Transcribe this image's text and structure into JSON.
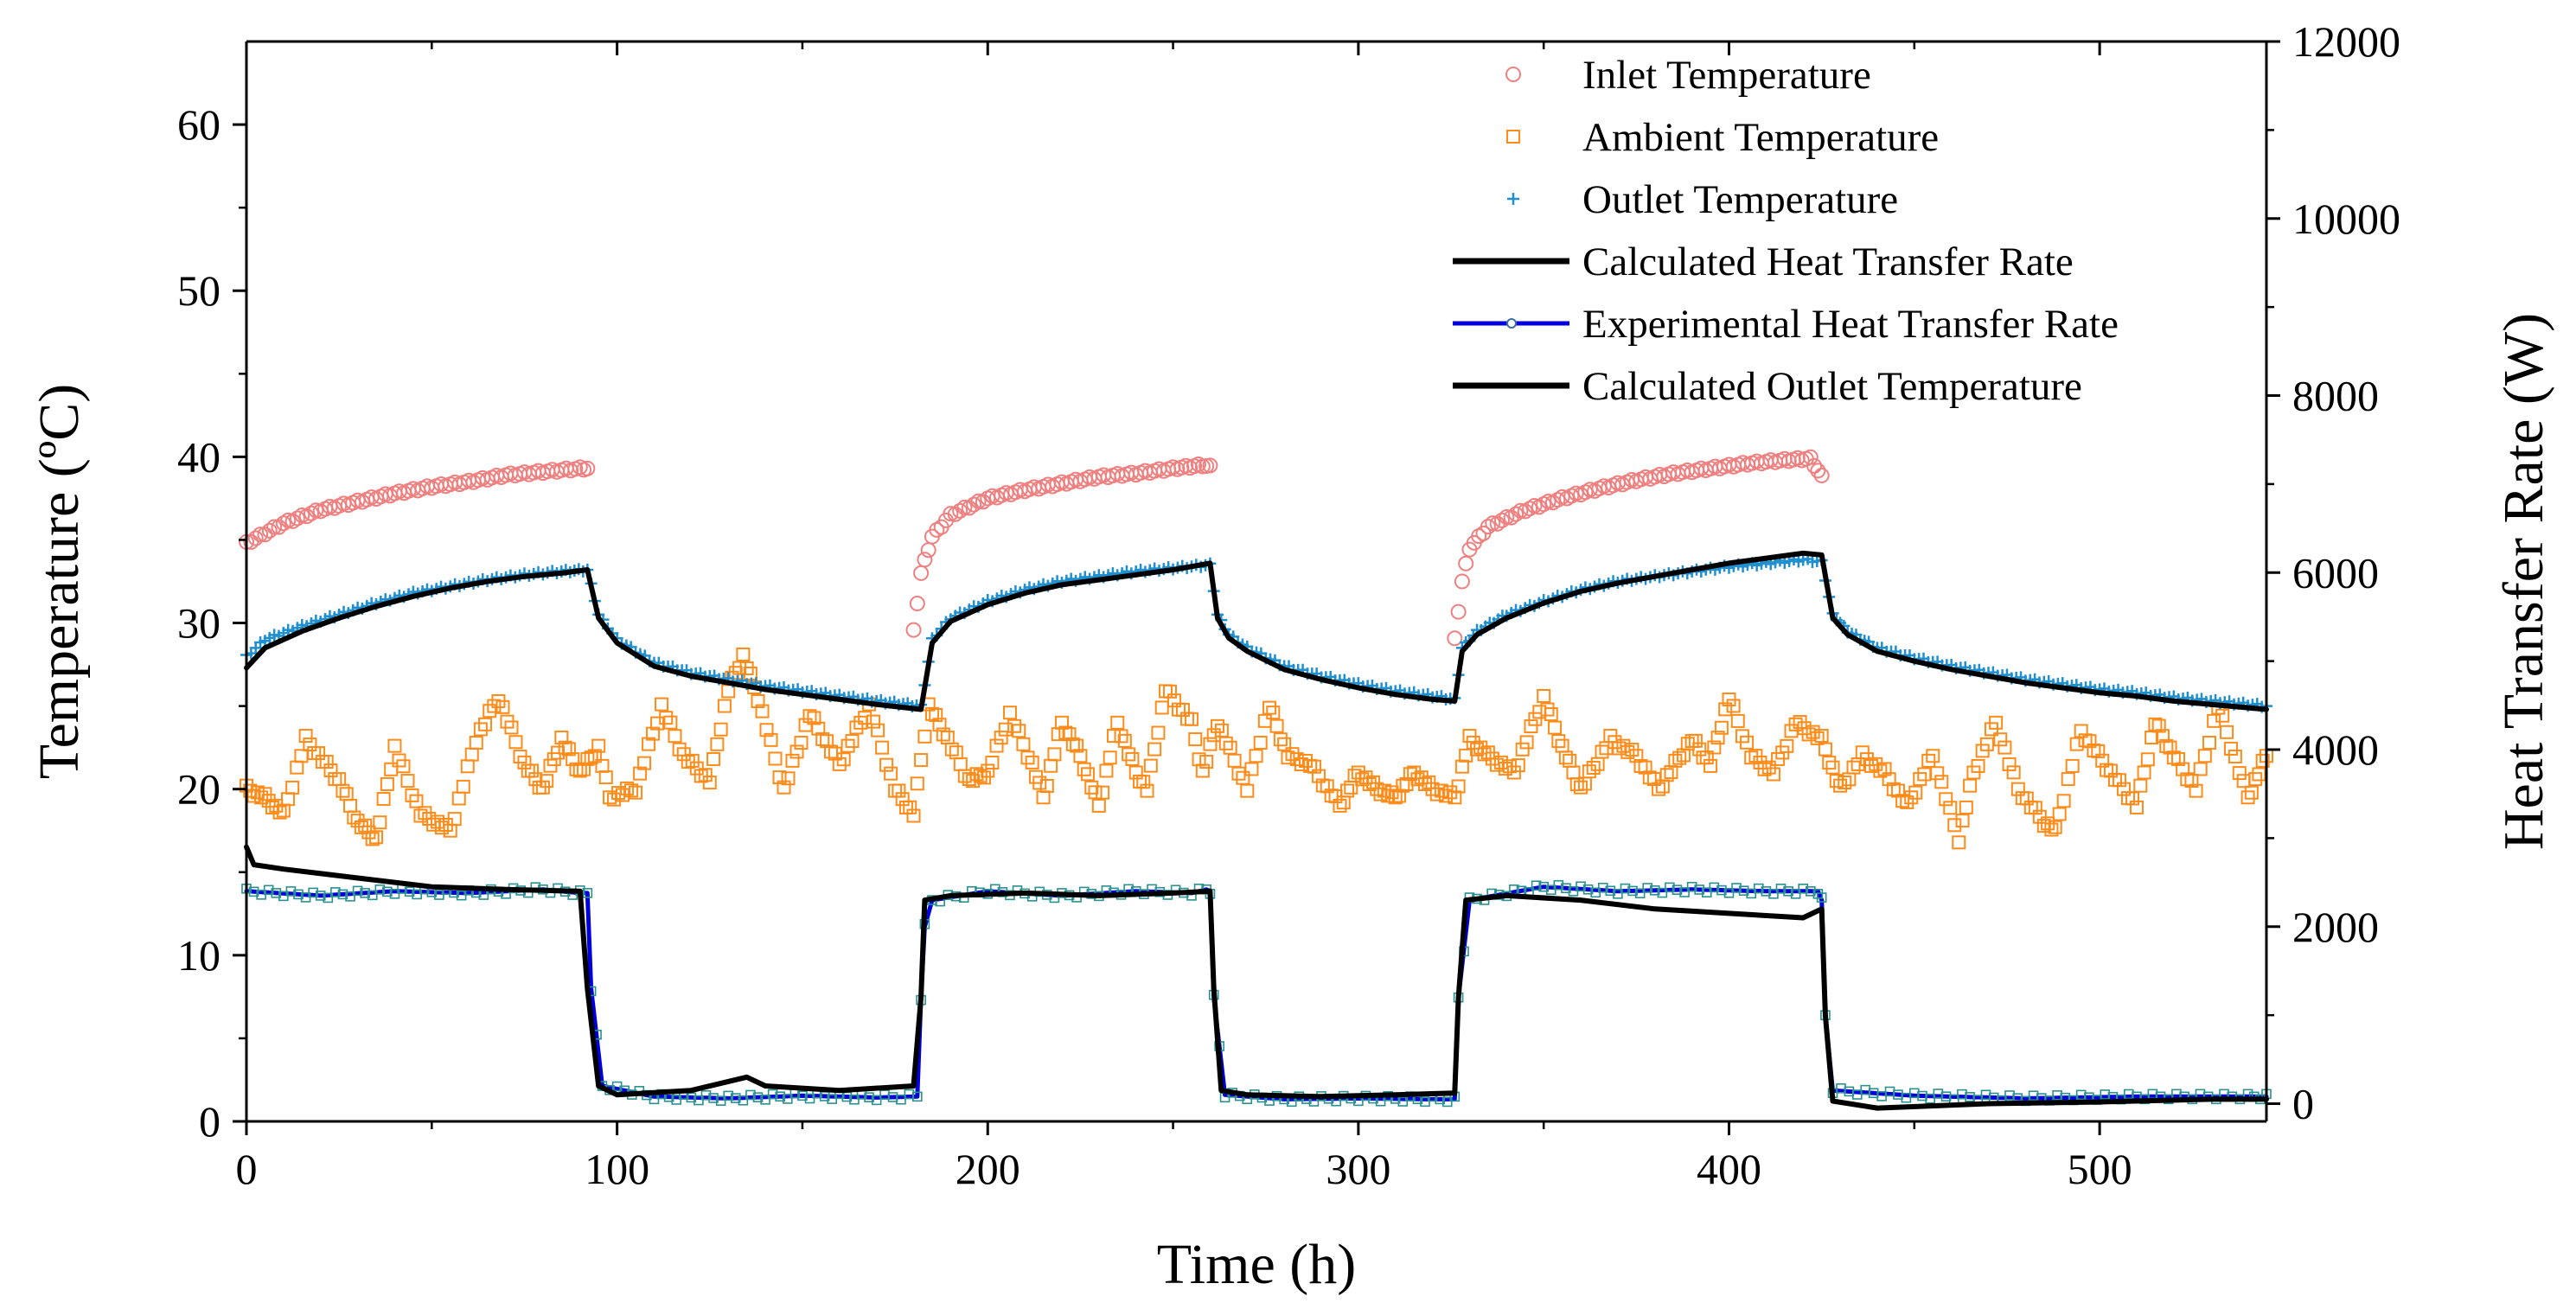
{
  "chart_data": {
    "type": "line",
    "title": "",
    "xlabel": "Time (h)",
    "ylabel_left": "Temperature (ºC)",
    "ylabel_right": "Heat Transfer Rate (W)",
    "xlim": [
      0,
      545
    ],
    "ylim_left": [
      0,
      65
    ],
    "ylim_right": [
      -200,
      12000
    ],
    "x_ticks": [
      0,
      100,
      200,
      300,
      400,
      500
    ],
    "y_left_ticks": [
      0,
      10,
      20,
      30,
      40,
      50,
      60
    ],
    "y_right_ticks": [
      0,
      2000,
      4000,
      6000,
      8000,
      10000,
      12000
    ],
    "x_tick_labels": [
      "0",
      "100",
      "200",
      "300",
      "400",
      "500"
    ],
    "y_left_tick_labels": [
      "0",
      "10",
      "20",
      "30",
      "40",
      "50",
      "60"
    ],
    "y_right_tick_labels": [
      "0",
      "2000",
      "4000",
      "6000",
      "8000",
      "10000",
      "12000"
    ],
    "legend_position": "top-right",
    "series": [
      {
        "name": "Inlet Temperature",
        "axis": "left",
        "style": "circle",
        "color": "#f08080",
        "segments": [
          {
            "x": [
              0,
              10,
              20,
              30,
              40,
              50,
              60,
              70,
              80,
              90,
              92
            ],
            "y": [
              34.8,
              36.0,
              36.8,
              37.3,
              37.8,
              38.2,
              38.5,
              38.9,
              39.1,
              39.3,
              39.3
            ]
          },
          {
            "x": [
              180,
              182,
              185,
              190,
              200,
              210,
              220,
              230,
              240,
              250,
              258,
              260
            ],
            "y": [
              29.5,
              33.0,
              35.2,
              36.5,
              37.5,
              38.0,
              38.4,
              38.8,
              39.0,
              39.3,
              39.5,
              39.4
            ]
          },
          {
            "x": [
              326,
              328,
              330,
              335,
              345,
              355,
              365,
              375,
              385,
              395,
              405,
              415,
              422,
              425
            ],
            "y": [
              29.0,
              32.5,
              34.5,
              35.8,
              36.8,
              37.5,
              38.1,
              38.6,
              39.0,
              39.3,
              39.6,
              39.8,
              39.9,
              38.8
            ]
          }
        ]
      },
      {
        "name": "Ambient Temperature",
        "axis": "left",
        "style": "square",
        "color": "#ff8c1a",
        "segments": [
          {
            "x": [
              0,
              5,
              10,
              16,
              25,
              30,
              35,
              40,
              47,
              55,
              62,
              68,
              75,
              80,
              85,
              90,
              95,
              98,
              105,
              112,
              118,
              125,
              130,
              134,
              138,
              145,
              152,
              160,
              168,
              175,
              180,
              184,
              188,
              195,
              200,
              206,
              212,
              215,
              220,
              225,
              230,
              235,
              240,
              243,
              248,
              255,
              258,
              262,
              270,
              276,
              281,
              287,
              295,
              300,
              305,
              310,
              315,
              320,
              326,
              330,
              335,
              342,
              350,
              355,
              360,
              368,
              375,
              381,
              390,
              395,
              400,
              406,
              412,
              418,
              425,
              430,
              436,
              442,
              448,
              455,
              462,
              466,
              472,
              478,
              485,
              488,
              495,
              503,
              510,
              515,
              520,
              526,
              532,
              540,
              545
            ],
            "y": [
              20.0,
              19.5,
              18.5,
              23.0,
              20.5,
              18.0,
              17.0,
              22.5,
              18.5,
              17.5,
              23.0,
              25.5,
              21.5,
              20.0,
              23.0,
              21.0,
              22.5,
              19.5,
              20.0,
              25.0,
              22.0,
              20.5,
              26.0,
              28.0,
              25.5,
              20.0,
              24.5,
              21.5,
              25.0,
              20.0,
              18.5,
              25.0,
              23.5,
              20.5,
              21.0,
              24.5,
              21.5,
              19.5,
              24.0,
              22.0,
              19.0,
              24.0,
              21.0,
              20.0,
              26.0,
              24.0,
              21.0,
              24.0,
              20.0,
              25.0,
              22.0,
              21.5,
              19.0,
              21.0,
              20.0,
              19.5,
              21.0,
              20.0,
              19.5,
              23.0,
              22.0,
              21.0,
              25.5,
              22.5,
              20.0,
              23.0,
              22.0,
              20.0,
              23.0,
              21.5,
              25.5,
              22.0,
              21.0,
              24.0,
              23.0,
              20.0,
              22.0,
              21.0,
              19.0,
              22.0,
              17.0,
              21.0,
              24.0,
              20.0,
              18.0,
              17.5,
              23.5,
              21.0,
              19.0,
              24.0,
              22.0,
              20.0,
              25.0,
              19.5,
              22.0
            ]
          }
        ]
      },
      {
        "name": "Outlet Temperature",
        "axis": "left",
        "style": "plus",
        "color": "#1f8fd0",
        "segments": [
          {
            "x": [
              0,
              5,
              15,
              25,
              35,
              45,
              55,
              65,
              75,
              85,
              92,
              95,
              100,
              110,
              120,
              130,
              140,
              150,
              160,
              170,
              182,
              185,
              190,
              200,
              210,
              220,
              230,
              240,
              250,
              260,
              262,
              265,
              270,
              280,
              290,
              300,
              310,
              320,
              326,
              328,
              332,
              340,
              350,
              360,
              370,
              380,
              390,
              400,
              410,
              420,
              425,
              428,
              432,
              440,
              450,
              460,
              470,
              480,
              490,
              500,
              510,
              520,
              530,
              545
            ],
            "y": [
              28.0,
              29.0,
              29.8,
              30.5,
              31.2,
              31.8,
              32.2,
              32.6,
              32.9,
              33.1,
              33.2,
              30.5,
              29.0,
              27.6,
              27.0,
              26.6,
              26.2,
              25.9,
              25.6,
              25.3,
              25.0,
              29.0,
              30.3,
              31.3,
              32.0,
              32.5,
              32.8,
              33.1,
              33.3,
              33.5,
              30.5,
              29.3,
              28.5,
              27.4,
              26.8,
              26.3,
              25.9,
              25.6,
              25.4,
              28.5,
              29.5,
              30.5,
              31.3,
              32.0,
              32.5,
              32.8,
              33.1,
              33.4,
              33.6,
              33.8,
              33.7,
              30.5,
              29.5,
              28.5,
              27.9,
              27.4,
              27.0,
              26.6,
              26.3,
              26.0,
              25.8,
              25.5,
              25.3,
              25.0
            ]
          }
        ]
      },
      {
        "name": "Calculated Heat Transfer Rate",
        "axis": "right",
        "style": "line",
        "color": "#000000",
        "segments": [
          {
            "x": [
              0,
              2,
              10,
              30,
              50,
              70,
              90,
              92,
              95,
              100,
              120,
              135,
              140,
              160,
              180,
              182,
              183,
              190,
              210,
              230,
              250,
              260,
              261,
              263,
              270,
              290,
              310,
              326,
              327,
              329,
              340,
              360,
              380,
              400,
              420,
              425,
              426,
              428,
              440,
              470,
              500,
              530,
              545
            ],
            "y": [
              2900,
              2700,
              2650,
              2550,
              2450,
              2420,
              2400,
              1300,
              200,
              100,
              150,
              300,
              200,
              150,
              200,
              1200,
              2300,
              2350,
              2380,
              2350,
              2380,
              2400,
              1300,
              150,
              100,
              80,
              100,
              120,
              1200,
              2300,
              2350,
              2300,
              2200,
              2150,
              2100,
              2200,
              1000,
              30,
              -50,
              0,
              20,
              50,
              50
            ]
          }
        ]
      },
      {
        "name": "Experimental Heat Transfer Rate",
        "axis": "right",
        "style": "line-marker",
        "color": "#0000dd",
        "marker_color": "#2a9090",
        "segments": [
          {
            "x": [
              0,
              20,
              40,
              60,
              80,
              90,
              92,
              93,
              96,
              110,
              130,
              150,
              170,
              181,
              182,
              183,
              185,
              200,
              220,
              240,
              255,
              259,
              260,
              261,
              264,
              280,
              300,
              320,
              326,
              327,
              330,
              350,
              370,
              390,
              410,
              424,
              425,
              426,
              428,
              450,
              480,
              510,
              540,
              545
            ],
            "y": [
              2400,
              2350,
              2400,
              2380,
              2420,
              2380,
              2380,
              1300,
              200,
              80,
              60,
              90,
              70,
              80,
              1200,
              2000,
              2300,
              2400,
              2350,
              2400,
              2380,
              2420,
              2400,
              1200,
              100,
              50,
              60,
              50,
              50,
              1200,
              2300,
              2450,
              2400,
              2420,
              2400,
              2400,
              2300,
              1000,
              150,
              90,
              60,
              80,
              80,
              80
            ]
          }
        ]
      },
      {
        "name": "Calculated Outlet Temperature",
        "axis": "left",
        "style": "line",
        "color": "#000000",
        "segments": [
          {
            "x": [
              0,
              5,
              15,
              25,
              35,
              45,
              55,
              65,
              75,
              85,
              92,
              95,
              100,
              110,
              120,
              130,
              140,
              150,
              160,
              170,
              182,
              185,
              190,
              200,
              210,
              220,
              230,
              240,
              250,
              260,
              262,
              265,
              270,
              280,
              290,
              300,
              310,
              320,
              326,
              328,
              332,
              340,
              350,
              360,
              370,
              380,
              390,
              400,
              410,
              420,
              425,
              428,
              432,
              440,
              450,
              460,
              470,
              480,
              490,
              500,
              510,
              520,
              530,
              545
            ],
            "y": [
              27.3,
              28.5,
              29.5,
              30.3,
              31.0,
              31.6,
              32.1,
              32.5,
              32.8,
              33.0,
              33.2,
              30.3,
              28.8,
              27.4,
              26.8,
              26.4,
              26.0,
              25.7,
              25.4,
              25.1,
              24.8,
              28.8,
              30.1,
              31.1,
              31.8,
              32.3,
              32.6,
              32.9,
              33.2,
              33.6,
              30.3,
              29.1,
              28.3,
              27.2,
              26.6,
              26.1,
              25.7,
              25.4,
              25.3,
              28.3,
              29.3,
              30.3,
              31.2,
              31.9,
              32.4,
              32.8,
              33.2,
              33.6,
              33.9,
              34.2,
              34.1,
              30.3,
              29.3,
              28.3,
              27.7,
              27.2,
              26.8,
              26.4,
              26.1,
              25.8,
              25.6,
              25.3,
              25.1,
              24.8
            ]
          }
        ]
      }
    ]
  }
}
